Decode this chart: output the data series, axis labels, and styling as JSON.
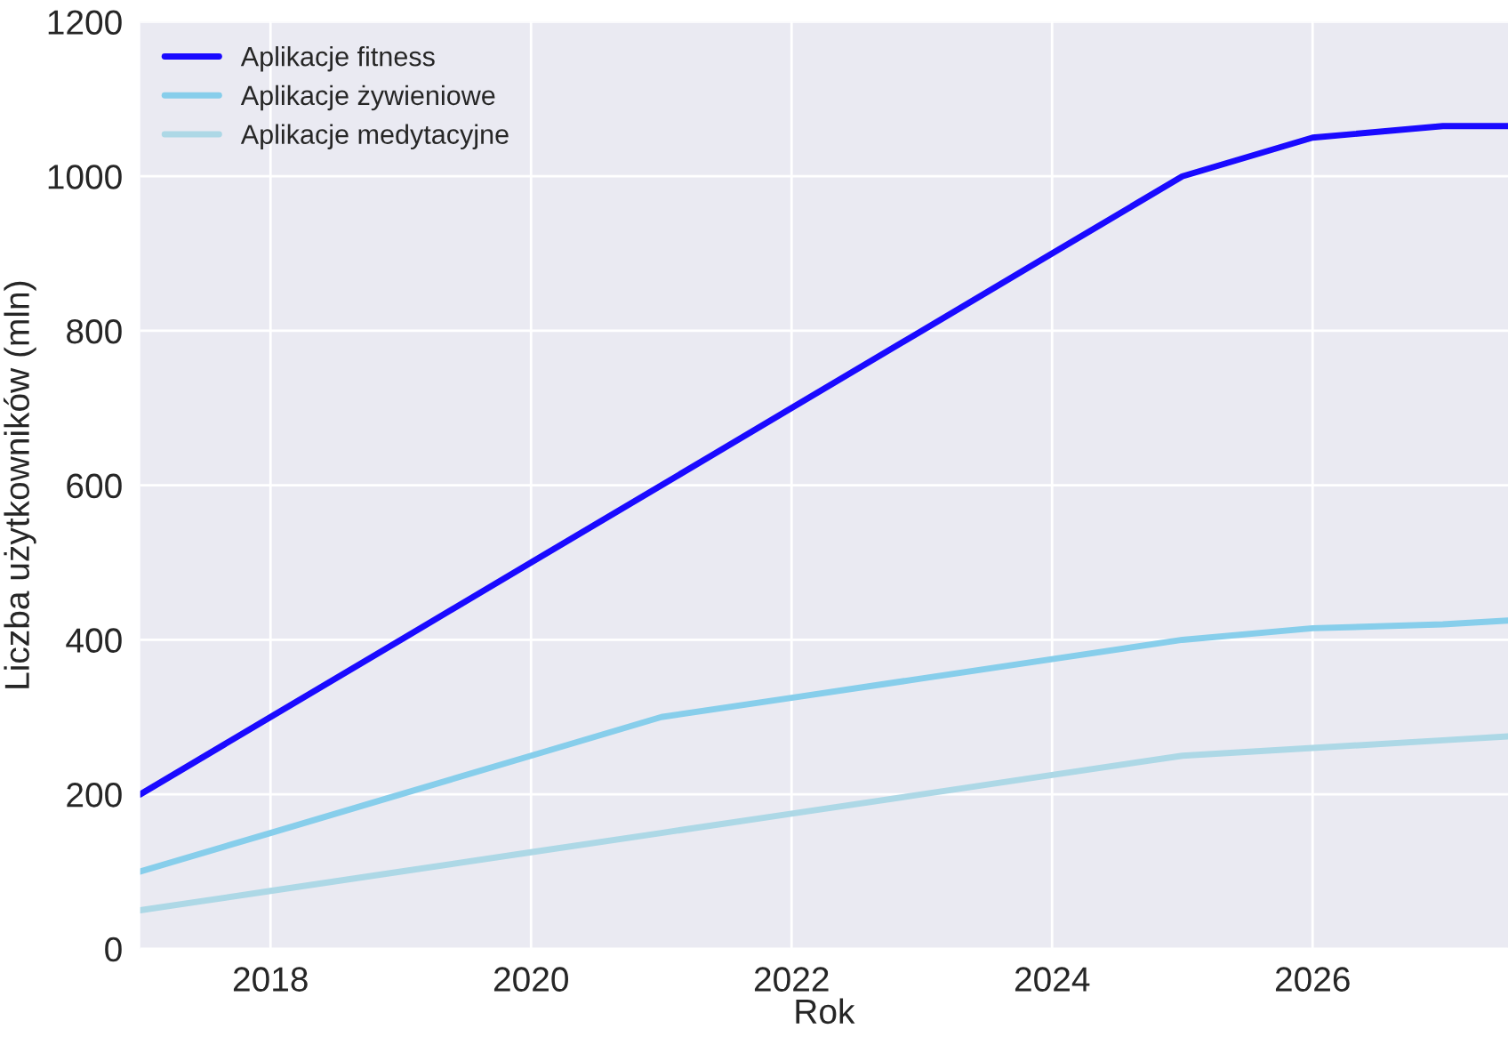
{
  "chart_data": {
    "type": "line",
    "xlabel": "Rok",
    "ylabel": "Liczba użytkowników (mln)",
    "series": [
      {
        "name": "Aplikacje fitness",
        "color": "#1a0aff",
        "x": [
          2017,
          2018,
          2019,
          2020,
          2021,
          2022,
          2023,
          2024,
          2025,
          2026,
          2027,
          2027.5
        ],
        "values": [
          200,
          300,
          400,
          500,
          600,
          700,
          800,
          900,
          1000,
          1050,
          1065,
          1065
        ]
      },
      {
        "name": "Aplikacje żywieniowe",
        "color": "#87ceeb",
        "x": [
          2017,
          2018,
          2019,
          2020,
          2021,
          2022,
          2023,
          2024,
          2025,
          2026,
          2027,
          2027.5
        ],
        "values": [
          100,
          150,
          200,
          250,
          300,
          325,
          350,
          375,
          400,
          415,
          420,
          425
        ]
      },
      {
        "name": "Aplikacje medytacyjne",
        "color": "#add8e6",
        "x": [
          2017,
          2018,
          2019,
          2020,
          2021,
          2022,
          2023,
          2024,
          2025,
          2026,
          2027,
          2027.5
        ],
        "values": [
          50,
          75,
          100,
          125,
          150,
          175,
          200,
          225,
          250,
          260,
          270,
          275
        ]
      }
    ],
    "xlim": [
      2017,
      2027.5
    ],
    "xticks": [
      2018,
      2020,
      2022,
      2024,
      2026
    ],
    "ylim": [
      0,
      1200
    ],
    "yticks": [
      0,
      200,
      400,
      600,
      800,
      1000,
      1200
    ],
    "grid": true,
    "legend": "top left",
    "marker": "none",
    "line_style": "solid"
  }
}
